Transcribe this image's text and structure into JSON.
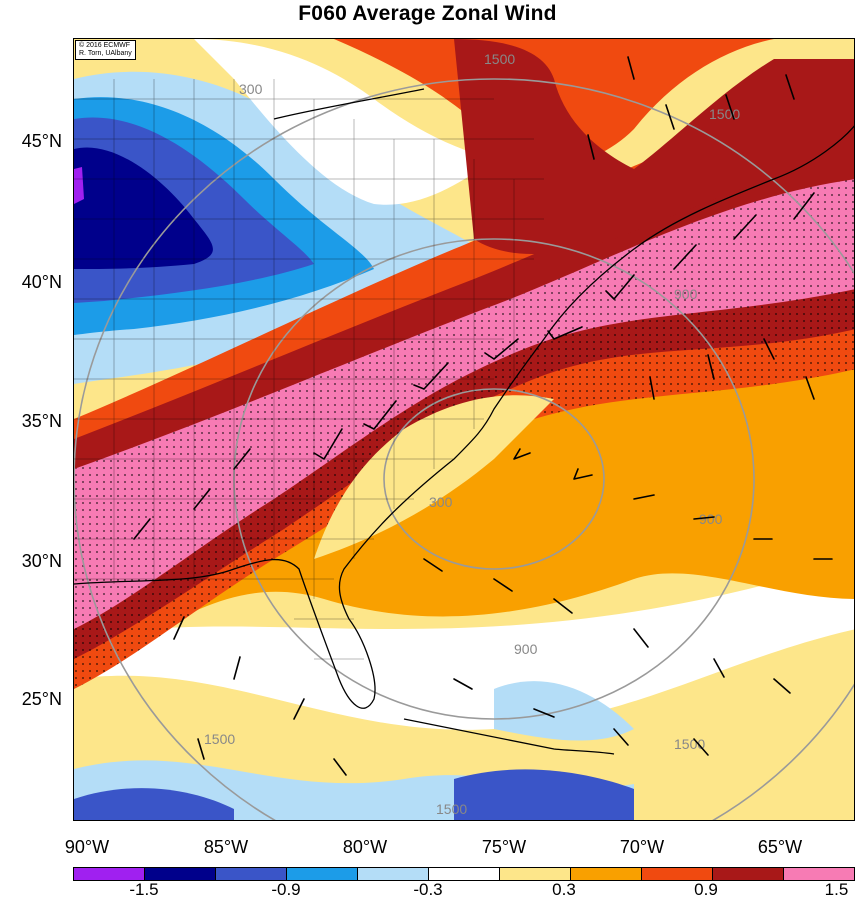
{
  "title": "F060 Average Zonal Wind",
  "credit": {
    "line1": "© 2016 ECMWF",
    "line2": "R. Torn, UAlbany"
  },
  "latitude_labels": [
    "45°N",
    "40°N",
    "35°N",
    "30°N",
    "25°N"
  ],
  "longitude_labels": [
    "90°W",
    "85°W",
    "80°W",
    "75°W",
    "70°W",
    "65°W"
  ],
  "colorbar": {
    "colors": [
      "#a020f0",
      "#00008b",
      "#3a55c8",
      "#1c9ce8",
      "#b4ddf7",
      "#ffffff",
      "#fde68a",
      "#f9a000",
      "#f04a10",
      "#a81818",
      "#f77bb4"
    ],
    "tick_labels": [
      "-1.5",
      "-0.9",
      "-0.3",
      "0.3",
      "0.9",
      "1.5"
    ]
  },
  "contour_labels": [
    "300",
    "900",
    "1500",
    "300",
    "900",
    "1500",
    "1500",
    "1500",
    "1500",
    "900"
  ],
  "map": {
    "region": "Eastern United States and western Atlantic",
    "field": "Average zonal wind (shaded), wind barbs, distance contours"
  }
}
